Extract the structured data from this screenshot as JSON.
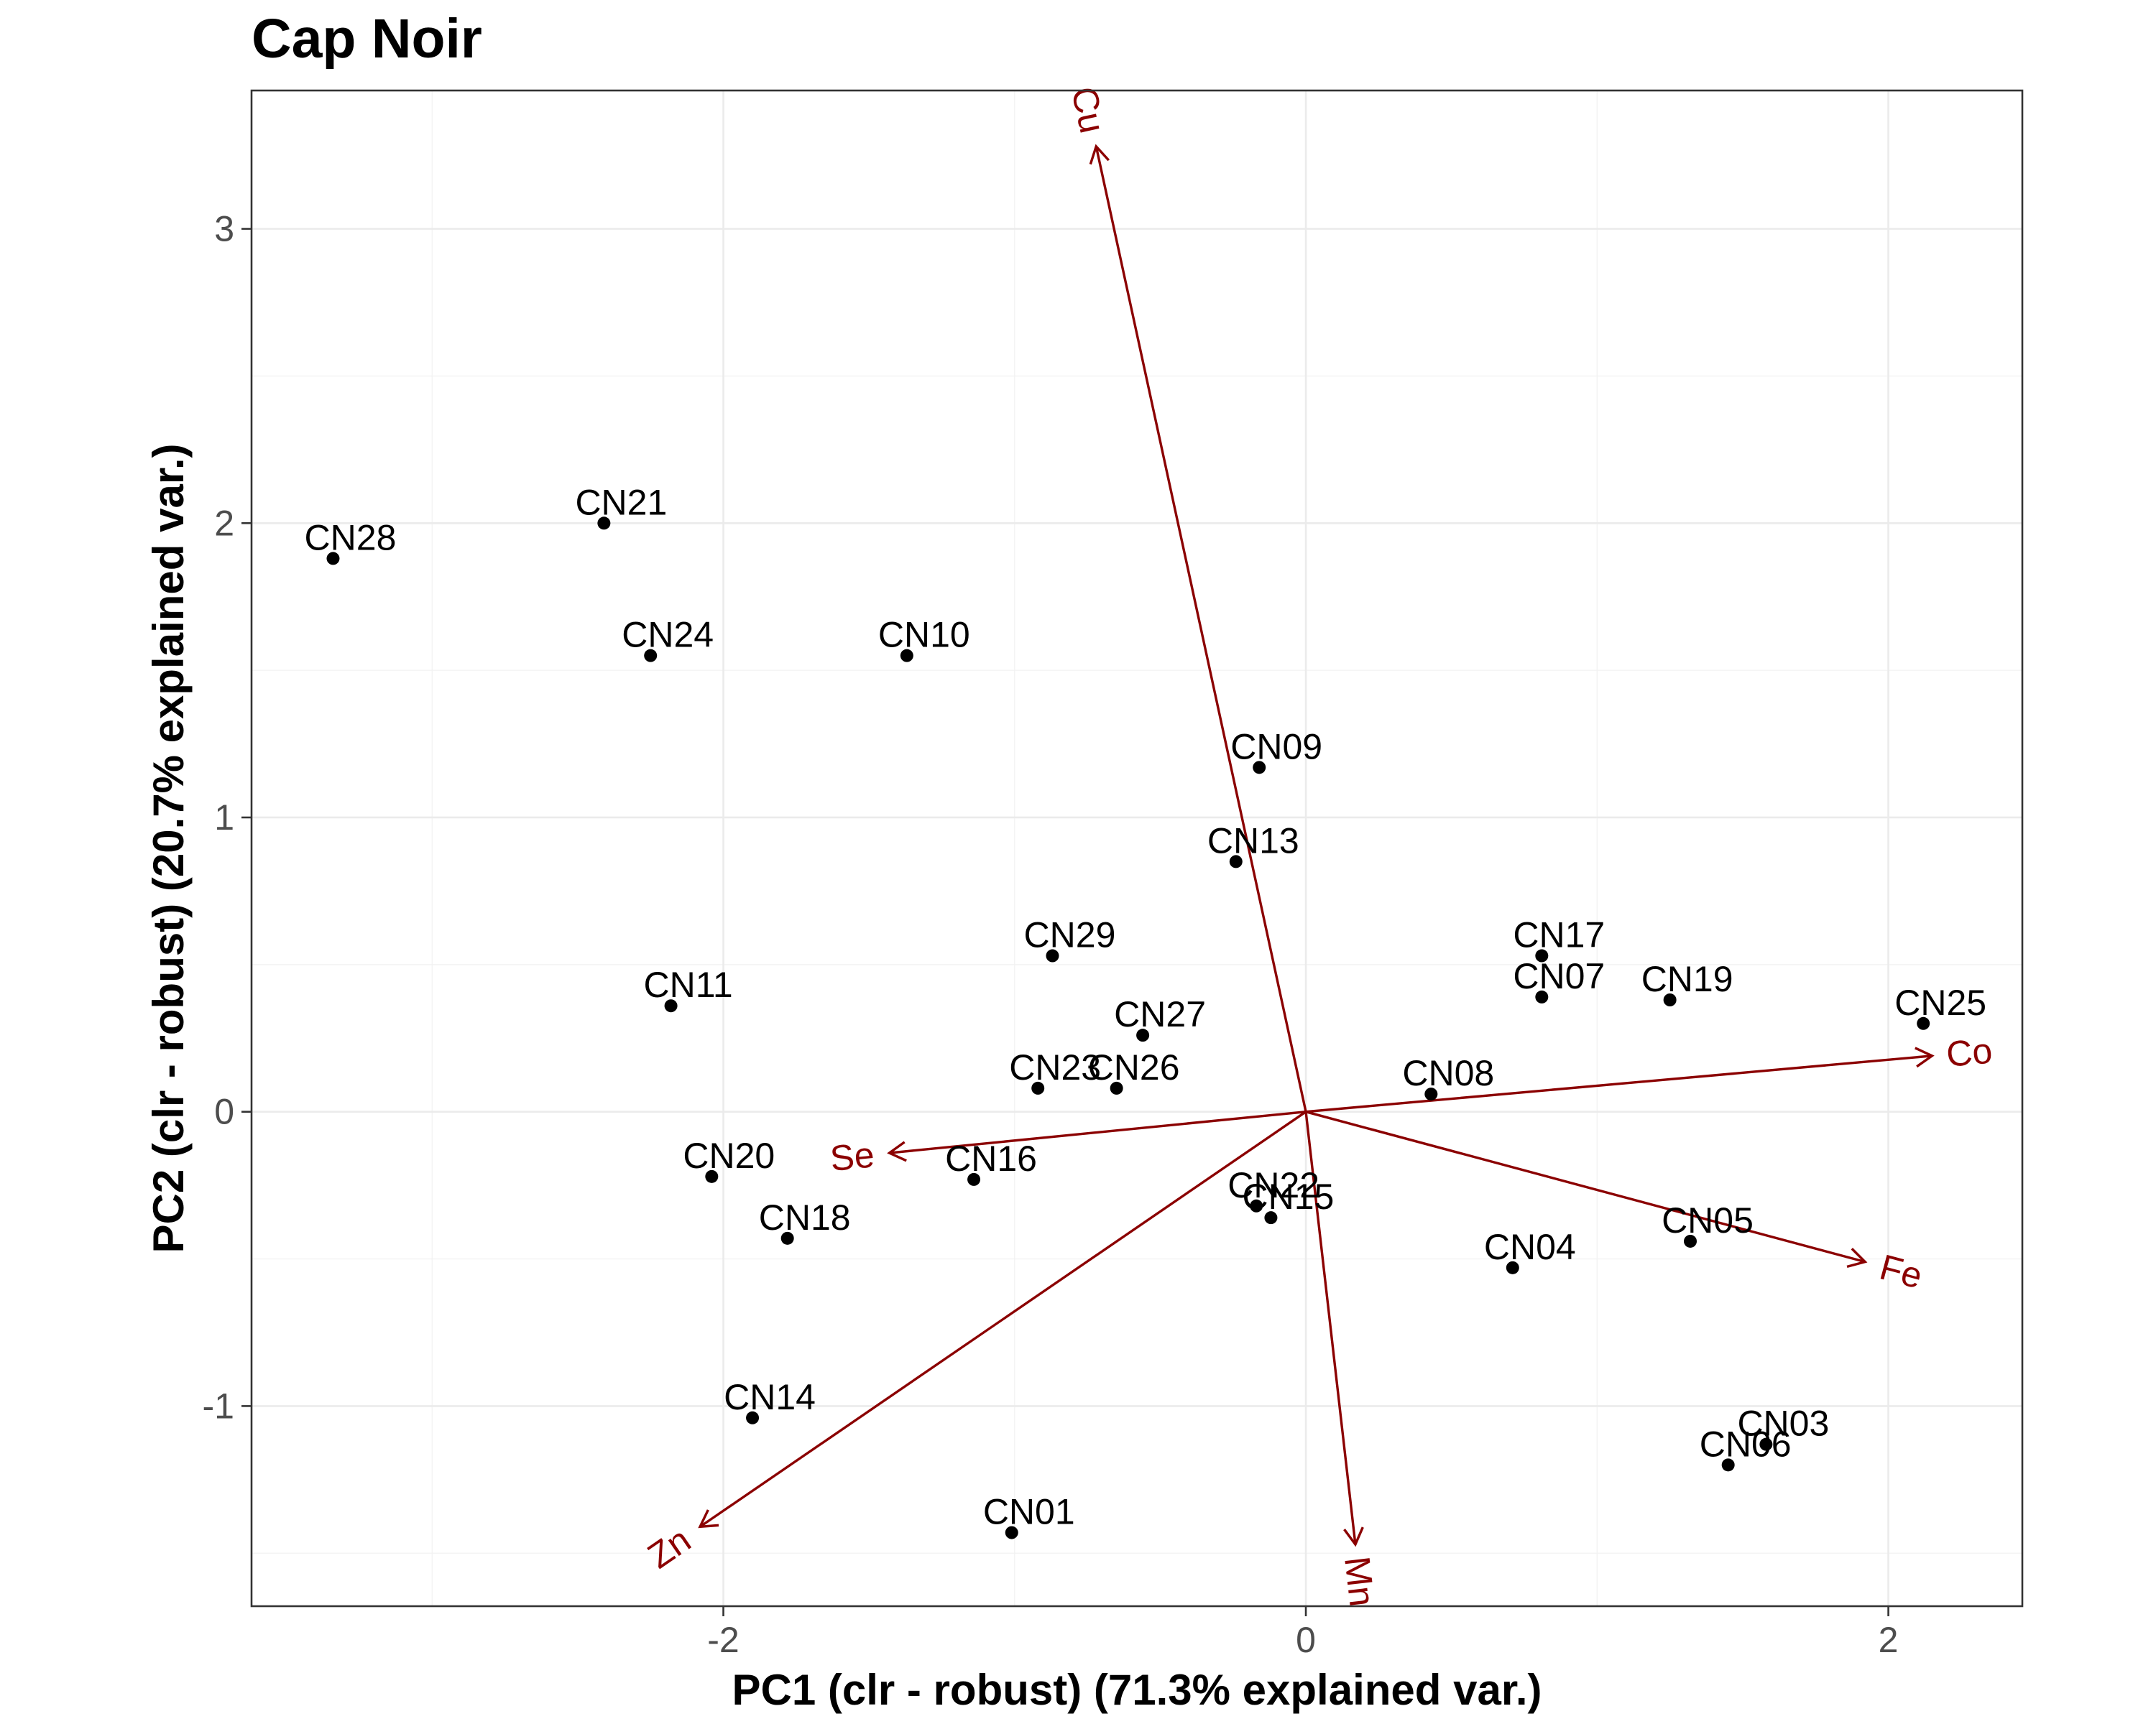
{
  "chart_data": {
    "type": "scatter",
    "subtype": "pca-biplot",
    "title": "Cap Noir",
    "xlabel": "PC1 (clr - robust) (71.3% explained var.)",
    "ylabel": "PC2 (clr - robust) (20.7% explained var.)",
    "xlim": [
      -3.62,
      2.46
    ],
    "ylim": [
      -1.68,
      3.47
    ],
    "x_ticks": [
      -2,
      0,
      2
    ],
    "x_tick_labels": [
      "-2",
      "0",
      "2"
    ],
    "y_ticks": [
      -1,
      0,
      1,
      2,
      3
    ],
    "y_tick_labels": [
      "-1",
      "0",
      "1",
      "2",
      "3"
    ],
    "grid": true,
    "point_color": "#000000",
    "arrow_color": "#8b0000",
    "points": [
      {
        "label": "CN28",
        "x": -3.34,
        "y": 1.88
      },
      {
        "label": "CN21",
        "x": -2.41,
        "y": 2.0
      },
      {
        "label": "CN24",
        "x": -2.25,
        "y": 1.55
      },
      {
        "label": "CN10",
        "x": -1.37,
        "y": 1.55
      },
      {
        "label": "CN09",
        "x": -0.16,
        "y": 1.17
      },
      {
        "label": "CN13",
        "x": -0.24,
        "y": 0.85
      },
      {
        "label": "CN29",
        "x": -0.87,
        "y": 0.53
      },
      {
        "label": "CN11",
        "x": -2.18,
        "y": 0.36
      },
      {
        "label": "CN27",
        "x": -0.56,
        "y": 0.26
      },
      {
        "label": "CN23",
        "x": -0.92,
        "y": 0.08
      },
      {
        "label": "CN26",
        "x": -0.65,
        "y": 0.08
      },
      {
        "label": "CN17",
        "x": 0.81,
        "y": 0.53
      },
      {
        "label": "CN07",
        "x": 0.81,
        "y": 0.39
      },
      {
        "label": "CN19",
        "x": 1.25,
        "y": 0.38
      },
      {
        "label": "CN25",
        "x": 2.12,
        "y": 0.3
      },
      {
        "label": "CN08",
        "x": 0.43,
        "y": 0.06
      },
      {
        "label": "CN20",
        "x": -2.04,
        "y": -0.22
      },
      {
        "label": "CN16",
        "x": -1.14,
        "y": -0.23
      },
      {
        "label": "CN18",
        "x": -1.78,
        "y": -0.43
      },
      {
        "label": "CN22",
        "x": -0.17,
        "y": -0.32
      },
      {
        "label": "CN15",
        "x": -0.12,
        "y": -0.36
      },
      {
        "label": "CN04",
        "x": 0.71,
        "y": -0.53
      },
      {
        "label": "CN05",
        "x": 1.32,
        "y": -0.44
      },
      {
        "label": "CN14",
        "x": -1.9,
        "y": -1.04
      },
      {
        "label": "CN01",
        "x": -1.01,
        "y": -1.43
      },
      {
        "label": "CN03",
        "x": 1.58,
        "y": -1.13
      },
      {
        "label": "CN06",
        "x": 1.45,
        "y": -1.2
      }
    ],
    "loadings": [
      {
        "label": "Cu",
        "x": -0.72,
        "y": 3.28
      },
      {
        "label": "Co",
        "x": 2.15,
        "y": 0.19
      },
      {
        "label": "Se",
        "x": -1.43,
        "y": -0.14
      },
      {
        "label": "Fe",
        "x": 1.92,
        "y": -0.51
      },
      {
        "label": "Zn",
        "x": -2.08,
        "y": -1.41
      },
      {
        "label": "Mn",
        "x": 0.17,
        "y": -1.47
      }
    ]
  }
}
